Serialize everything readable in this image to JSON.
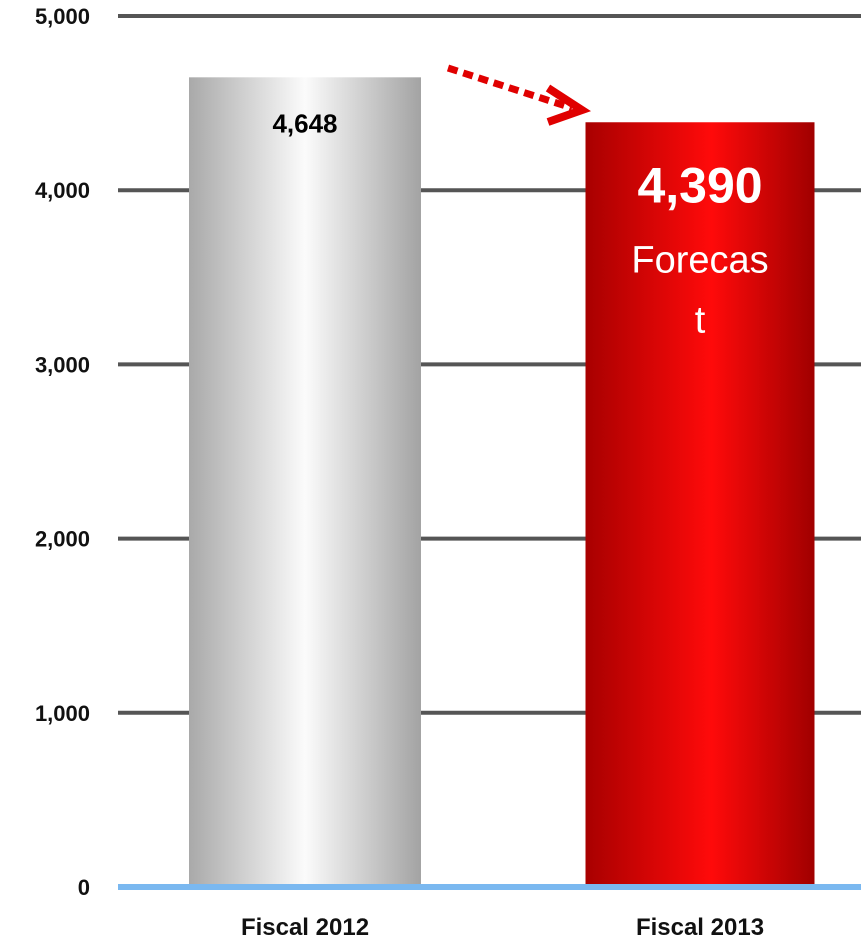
{
  "chart_data": {
    "type": "bar",
    "categories": [
      "Fiscal 2012",
      "Fiscal 2013"
    ],
    "values": [
      4648,
      4390
    ],
    "value_labels": [
      "4,648",
      "4,390"
    ],
    "annotations": {
      "forecast": [
        "Forecas",
        "t"
      ]
    },
    "ylim": [
      0,
      5000
    ],
    "yticks": [
      0,
      1000,
      2000,
      3000,
      4000,
      5000
    ],
    "ytick_labels": [
      "0",
      "1,000",
      "2,000",
      "3,000",
      "4,000",
      "5,000"
    ],
    "title": "",
    "xlabel": "",
    "ylabel": "",
    "grid": true,
    "colors": {
      "bar_fiscal_2012": "#c8c8c8",
      "bar_fiscal_2013": "#e00000",
      "gridline": "#555555",
      "baseline": "#7ab8f0",
      "arrow": "#e00000"
    }
  }
}
